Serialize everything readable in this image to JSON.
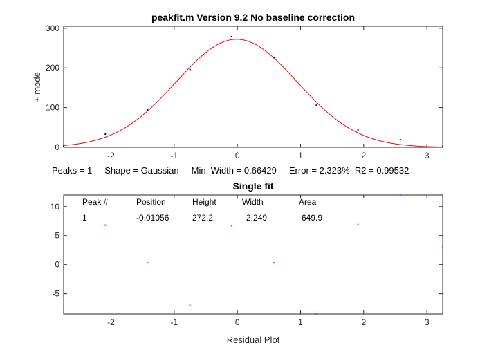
{
  "chart_data": [
    {
      "type": "scatter",
      "title": "peakfit.m Version 9.2   No baseline correction",
      "xlabel": "",
      "ylabel": "+ mode",
      "xlim": [
        -2.75,
        3.25
      ],
      "ylim": [
        0,
        305
      ],
      "xticks": [
        -2,
        -1,
        0,
        1,
        2,
        3
      ],
      "yticks": [
        0,
        100,
        200,
        300
      ],
      "colors": {
        "points": "#0000aa",
        "fit": "#ff0000"
      },
      "series": [
        {
          "kind": "data_points",
          "x": [
            -2.75,
            -2.09,
            -1.42,
            -0.75,
            -0.09,
            0.58,
            1.25,
            1.91,
            2.58,
            3.25
          ],
          "y": [
            3,
            33,
            94,
            196,
            279,
            226,
            106,
            44,
            19,
            2
          ]
        },
        {
          "kind": "fit_curve",
          "shape": "Gaussian",
          "center": -0.01056,
          "height": 272.2,
          "width": 2.249
        }
      ],
      "footer": "Peaks = 1     Shape = Gaussian     Min. Width = 0.66429     Error = 2.323%  R2 = 0.99532"
    },
    {
      "type": "scatter",
      "title": "Single fit",
      "xlabel": "Residual Plot",
      "ylabel": "",
      "xlim": [
        -2.75,
        3.25
      ],
      "ylim": [
        -8.5,
        12
      ],
      "xticks": [
        -2,
        -1,
        0,
        1,
        2,
        3
      ],
      "yticks": [
        -5,
        0,
        5,
        10
      ],
      "colors": {
        "points": "#ff00ff"
      },
      "series": [
        {
          "kind": "residuals",
          "x": [
            -2.75,
            -2.09,
            -1.42,
            -0.75,
            -0.09,
            0.58,
            1.25,
            1.91,
            2.58,
            3.25
          ],
          "y": [
            -0.5,
            6.8,
            0.3,
            -7.0,
            6.7,
            0.3,
            -8.5,
            6.9,
            12.0,
            3.1
          ]
        }
      ],
      "table": {
        "headers": [
          "Peak #",
          "Position",
          "Height",
          "Width",
          "Area"
        ],
        "rows": [
          [
            "1",
            "-0.01056",
            "272.2",
            "2.249",
            "649.9"
          ]
        ]
      }
    }
  ]
}
